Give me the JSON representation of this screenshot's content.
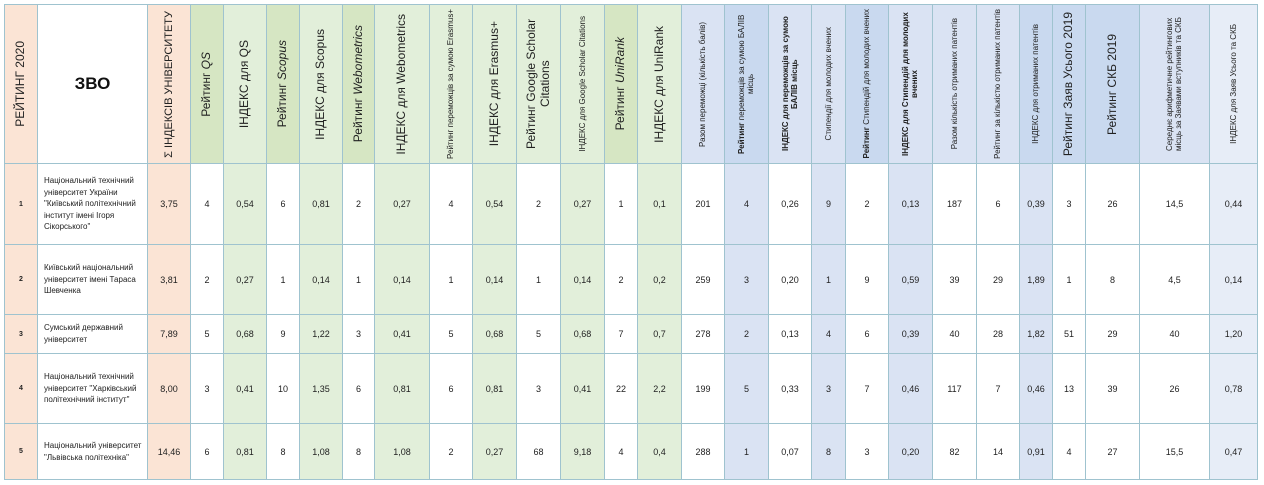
{
  "headers": {
    "rank2020": "РЕЙТИНГ 2020",
    "zvo": "ЗВО",
    "sum_index": "Σ ІНДЕКСІВ УНІВЕРСИТЕТУ",
    "rank_qs_prefix": "Рейтинг ",
    "rank_qs_name": "QS",
    "idx_qs": "ІНДЕКС для QS",
    "rank_scopus_prefix": "Рейтинг ",
    "rank_scopus_name": "Scopus",
    "idx_scopus": "ІНДЕКС для Scopus",
    "rank_webo_prefix": "Рейтинг ",
    "rank_webo_name": "Webometrics",
    "idx_webo": "ІНДЕКС для Webometrics",
    "rank_erasmus": "Рейтинг переможців за сумою Erasmus+",
    "idx_erasmus": "ІНДЕКС для  Erasmus+",
    "rank_gs": "Рейтинг  Google Scholar Citations",
    "idx_gs": "ІНДЕКС для Google Scholar Citations",
    "rank_unirank_prefix": "Рейтинг ",
    "rank_unirank_name": "UniRank",
    "idx_unirank": "ІНДЕКС для UniRank",
    "winners_total": "Разом переможці (кількість балів)",
    "rank_winners_bold": "Рейтинг",
    "rank_winners_rest": " переможців за сумою БАЛІВ місць",
    "idx_winners": "ІНДЕКС для  переможців за сумою БАЛІВ місць",
    "stip_young": "Стипендії для молодих вчених",
    "rank_stip_bold": "Рейтинг",
    "rank_stip_rest": " Стипендій для молодих вчених",
    "idx_stip": "ІНДЕКС для  Стипендій для молодих вчених",
    "patents_total": "Разом  кількість  отриманих патентів",
    "rank_patents": "Рейтинг за кількістю отриманих патентів",
    "idx_patents": "ІНДЕКС для  отриманих патентів",
    "rank_apps": "Рейтинг  Заяв Усього 2019",
    "rank_skb": "Рейтинг  СКБ 2019",
    "avg_places": "Середнє арифметичне рейтингових місць за Заявами вступників та СКБ",
    "idx_apps_skb": "ІНДЕКС для  Заяв  Усього та СКБ"
  },
  "rows": [
    {
      "rank": "1",
      "name": "Національний технічний університет України \"Київський політехнічний інститут імені Ігоря Сікорського\"",
      "values": [
        "3,75",
        "4",
        "0,54",
        "6",
        "0,81",
        "2",
        "0,27",
        "4",
        "0,54",
        "2",
        "0,27",
        "1",
        "0,1",
        "201",
        "4",
        "0,26",
        "9",
        "2",
        "0,13",
        "187",
        "6",
        "0,39",
        "3",
        "26",
        "14,5",
        "0,44"
      ]
    },
    {
      "rank": "2",
      "name": "Київський національний університет імені Тараса Шевченка",
      "values": [
        "3,81",
        "2",
        "0,27",
        "1",
        "0,14",
        "1",
        "0,14",
        "1",
        "0,14",
        "1",
        "0,14",
        "2",
        "0,2",
        "259",
        "3",
        "0,20",
        "1",
        "9",
        "0,59",
        "39",
        "29",
        "1,89",
        "1",
        "8",
        "4,5",
        "0,14"
      ]
    },
    {
      "rank": "3",
      "name": "Сумський державний університет",
      "values": [
        "7,89",
        "5",
        "0,68",
        "9",
        "1,22",
        "3",
        "0,41",
        "5",
        "0,68",
        "5",
        "0,68",
        "7",
        "0,7",
        "278",
        "2",
        "0,13",
        "4",
        "6",
        "0,39",
        "40",
        "28",
        "1,82",
        "51",
        "29",
        "40",
        "1,20"
      ]
    },
    {
      "rank": "4",
      "name": "Національний технічний університет \"Харківський політехнічний інститут\"",
      "values": [
        "8,00",
        "3",
        "0,41",
        "10",
        "1,35",
        "6",
        "0,81",
        "6",
        "0,81",
        "3",
        "0,41",
        "22",
        "2,2",
        "199",
        "5",
        "0,33",
        "3",
        "7",
        "0,46",
        "117",
        "7",
        "0,46",
        "13",
        "39",
        "26",
        "0,78"
      ]
    },
    {
      "rank": "5",
      "name": "Національний університет \"Львівська політехніка\"",
      "values": [
        "14,46",
        "6",
        "0,81",
        "8",
        "1,08",
        "8",
        "1,08",
        "2",
        "0,27",
        "68",
        "9,18",
        "4",
        "0,4",
        "288",
        "1",
        "0,07",
        "8",
        "3",
        "0,20",
        "82",
        "14",
        "0,91",
        "4",
        "27",
        "15,5",
        "0,47"
      ]
    }
  ]
}
